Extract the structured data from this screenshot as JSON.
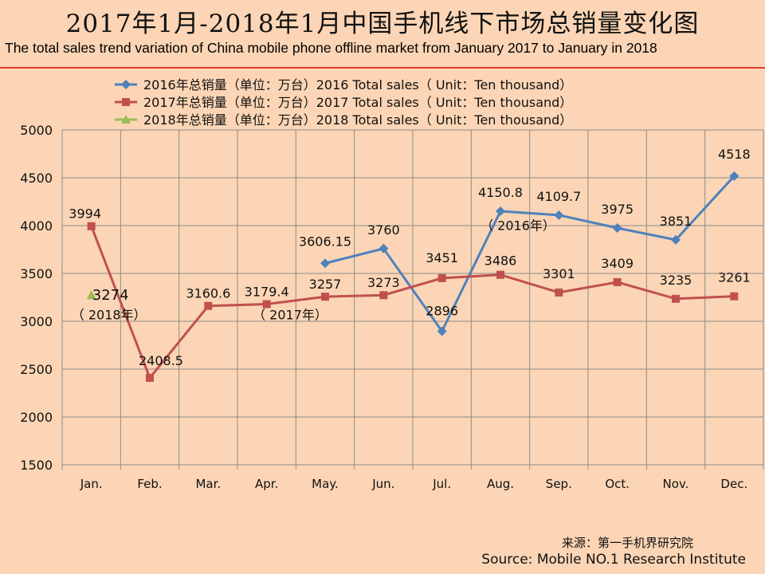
{
  "title_cn": "2017年1月-2018年1月中国手机线下市场总销量变化图",
  "title_en": "The total sales trend variation of China mobile phone offline market from January 2017 to January in 2018",
  "source_cn": "来源：第一手机界研究院",
  "source_en": "Source: Mobile NO.1 Research Institute",
  "colors": {
    "s2016": "#4f81bd",
    "s2017": "#c0504d",
    "s2018": "#9bbb59",
    "rule": "#e03a2c"
  },
  "chart_data": {
    "type": "line",
    "categories": [
      "Jan.",
      "Feb.",
      "Mar.",
      "Apr.",
      "May.",
      "Jun.",
      "Jul.",
      "Aug.",
      "Sep.",
      "Oct.",
      "Nov.",
      "Dec."
    ],
    "ylim": [
      1500,
      5000
    ],
    "yticks": [
      1500,
      2000,
      2500,
      3000,
      3500,
      4000,
      4500,
      5000
    ],
    "grid": true,
    "legend_position": "top",
    "series": [
      {
        "name": "2016年总销量（单位：万台）2016 Total sales（ Unit：Ten thousand）",
        "marker": "diamond",
        "values": [
          null,
          null,
          null,
          null,
          3606.15,
          3760,
          2896,
          4150.8,
          4109.7,
          3975,
          3851,
          4518
        ],
        "labels": [
          null,
          null,
          null,
          null,
          "3606.15",
          "3760",
          "2896",
          "4150.8",
          "4109.7",
          "3975",
          "3851",
          "4518"
        ]
      },
      {
        "name": "2017年总销量（单位：万台）2017 Total sales（ Unit：Ten thousand）",
        "marker": "square",
        "values": [
          3994,
          2408.5,
          3160.6,
          3179.4,
          3257,
          3273,
          3451,
          3486,
          3301,
          3409,
          3235,
          3261
        ],
        "labels": [
          "3994",
          "2408.5",
          "3160.6",
          "3179.4",
          "3257",
          "3273",
          "3451",
          "3486",
          "3301",
          "3409",
          "3235",
          "3261"
        ]
      },
      {
        "name": "2018年总销量（单位：万台）2018 Total sales（ Unit：Ten thousand）",
        "marker": "triangle",
        "values": [
          3274,
          null,
          null,
          null,
          null,
          null,
          null,
          null,
          null,
          null,
          null,
          null
        ],
        "labels": [
          "3274",
          null,
          null,
          null,
          null,
          null,
          null,
          null,
          null,
          null,
          null,
          null
        ]
      }
    ],
    "annotations": [
      "（ 2016年）",
      "（ 2017年）",
      "（ 2018年）"
    ]
  }
}
